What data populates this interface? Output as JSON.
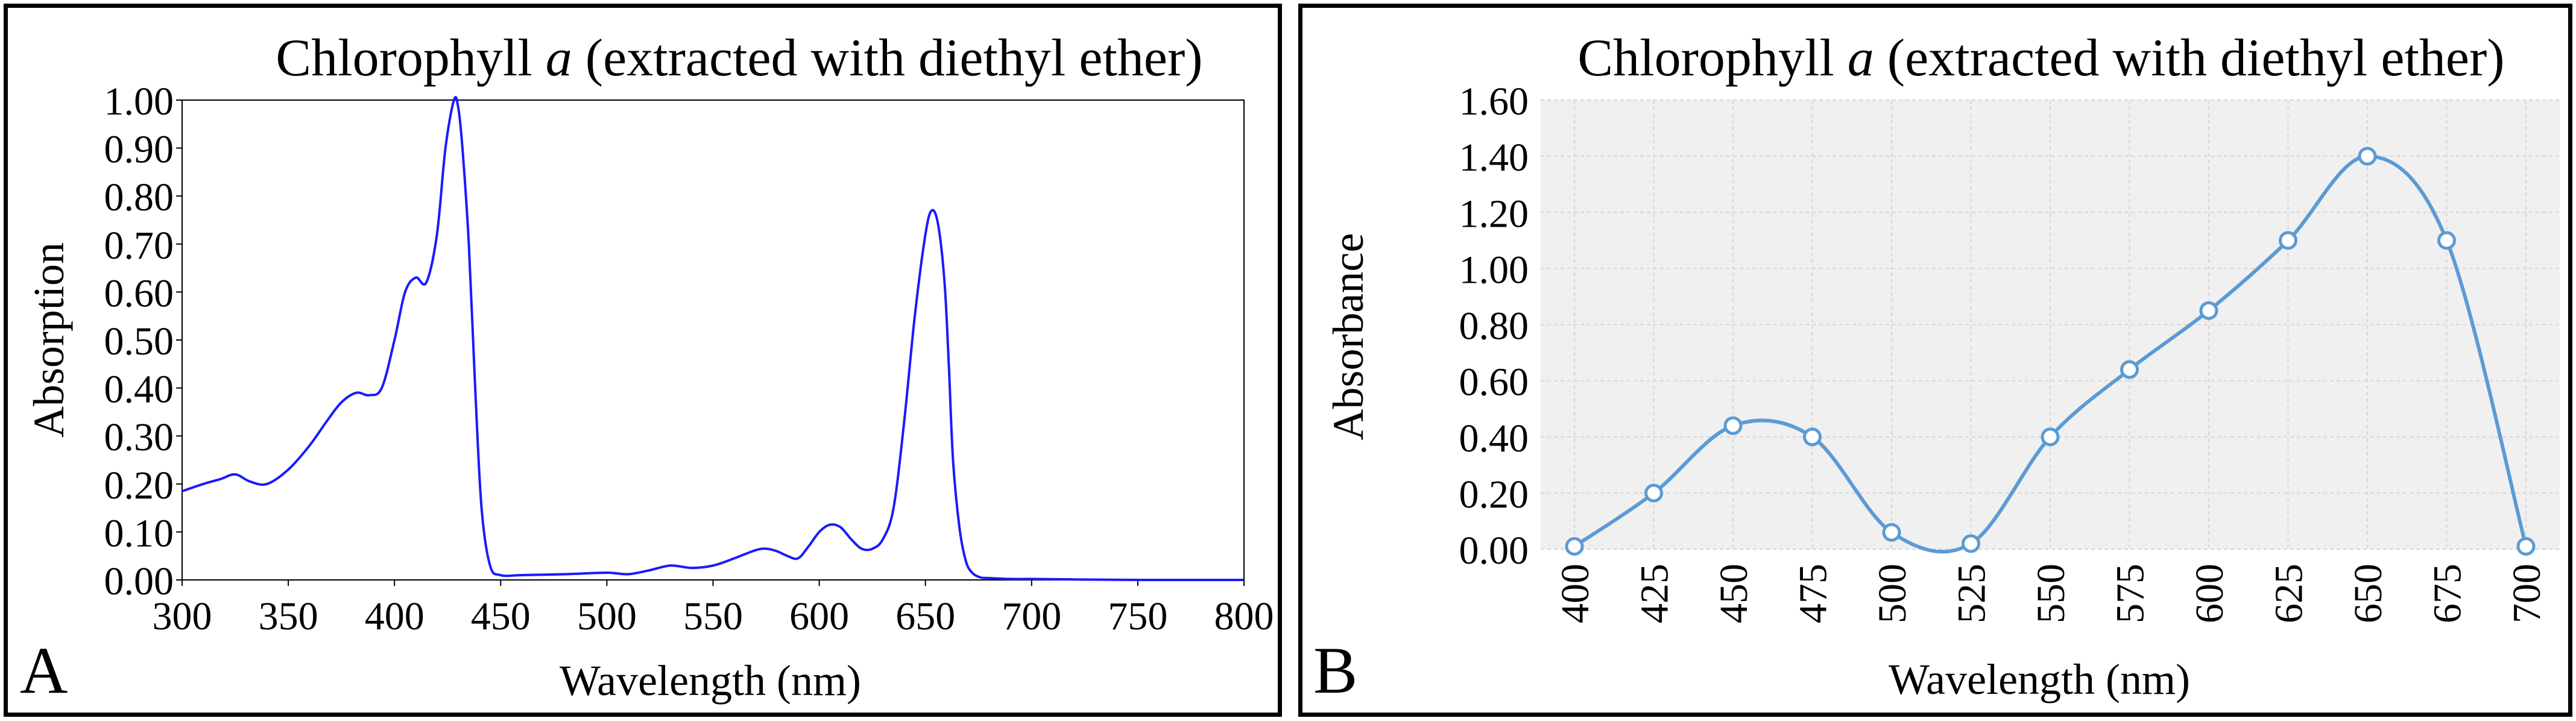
{
  "panels": [
    {
      "panel_label": "A",
      "chart_data": {
        "type": "line",
        "title": "Chlorophyll a (extracted with diethyl ether)",
        "title_main": "Chlorophyll ",
        "title_italic": "a",
        "title_rest": " (extracted with diethyl ether)",
        "xlabel": "Wavelength (nm)",
        "ylabel": "Absorption",
        "xlim": [
          300,
          800
        ],
        "ylim": [
          0,
          1.0
        ],
        "xticks": [
          300,
          350,
          400,
          450,
          500,
          550,
          600,
          650,
          700,
          750,
          800
        ],
        "xtick_labels": [
          "300",
          "350",
          "400",
          "450",
          "500",
          "550",
          "600",
          "650",
          "700",
          "750",
          "800"
        ],
        "yticks": [
          0,
          0.1,
          0.2,
          0.3,
          0.4,
          0.5,
          0.6,
          0.7,
          0.8,
          0.9,
          1.0
        ],
        "ytick_labels": [
          "0.00",
          "0.10",
          "0.20",
          "0.30",
          "0.40",
          "0.50",
          "0.60",
          "0.70",
          "0.80",
          "0.90",
          "1.00"
        ],
        "grid": false,
        "series": [
          {
            "name": "Chlorophyll a",
            "color": "#1a1aff",
            "x": [
              300,
              310,
              318,
              325,
              332,
              340,
              350,
              360,
              368,
              375,
              382,
              388,
              394,
              400,
              405,
              410,
              415,
              420,
              424,
              428,
              430,
              432,
              435,
              438,
              441,
              445,
              450,
              460,
              480,
              500,
              510,
              520,
              530,
              540,
              550,
              560,
              570,
              575,
              580,
              585,
              590,
              595,
              600,
              605,
              610,
              615,
              620,
              625,
              630,
              635,
              640,
              645,
              650,
              653,
              656,
              659,
              661,
              663,
              666,
              669,
              672,
              676,
              680,
              690,
              700,
              720,
              750,
              800
            ],
            "y": [
              0.185,
              0.2,
              0.21,
              0.22,
              0.205,
              0.2,
              0.23,
              0.28,
              0.33,
              0.37,
              0.39,
              0.385,
              0.4,
              0.5,
              0.6,
              0.63,
              0.62,
              0.72,
              0.9,
              1.0,
              0.985,
              0.9,
              0.7,
              0.4,
              0.15,
              0.03,
              0.01,
              0.01,
              0.012,
              0.015,
              0.012,
              0.02,
              0.03,
              0.025,
              0.03,
              0.045,
              0.062,
              0.065,
              0.06,
              0.05,
              0.045,
              0.07,
              0.1,
              0.115,
              0.11,
              0.085,
              0.065,
              0.065,
              0.085,
              0.15,
              0.33,
              0.55,
              0.72,
              0.77,
              0.74,
              0.62,
              0.45,
              0.25,
              0.11,
              0.04,
              0.015,
              0.005,
              0.004,
              0.002,
              0.002,
              0.001,
              0.0,
              0.0
            ]
          }
        ]
      }
    },
    {
      "panel_label": "B",
      "chart_data": {
        "type": "line",
        "title": "Chlorophyll a (extracted with diethyl ether)",
        "title_main": "Chlorophyll ",
        "title_italic": "a",
        "title_rest": " (extracted with diethyl ether)",
        "xlabel": "Wavelength (nm)",
        "ylabel": "Absorbance",
        "xlim": [
          400,
          700
        ],
        "ylim": [
          0,
          1.6
        ],
        "xticks": [
          400,
          425,
          450,
          475,
          500,
          525,
          550,
          575,
          600,
          625,
          650,
          675,
          700
        ],
        "xtick_labels": [
          "400",
          "425",
          "450",
          "475",
          "500",
          "525",
          "550",
          "575",
          "600",
          "625",
          "650",
          "675",
          "700"
        ],
        "yticks": [
          0,
          0.2,
          0.4,
          0.6,
          0.8,
          1.0,
          1.2,
          1.4,
          1.6
        ],
        "ytick_labels": [
          "0.00",
          "0.20",
          "0.40",
          "0.60",
          "0.80",
          "1.00",
          "1.20",
          "1.40",
          "1.60"
        ],
        "grid": true,
        "series": [
          {
            "name": "Chlorophyll a",
            "color": "#5b9bd5",
            "marker": "circle",
            "x": [
              400,
              425,
              450,
              475,
              500,
              525,
              550,
              575,
              600,
              625,
              650,
              675,
              700
            ],
            "y": [
              0.01,
              0.2,
              0.44,
              0.4,
              0.06,
              0.02,
              0.4,
              0.64,
              0.85,
              1.1,
              1.4,
              1.1,
              0.01
            ]
          }
        ]
      }
    }
  ]
}
